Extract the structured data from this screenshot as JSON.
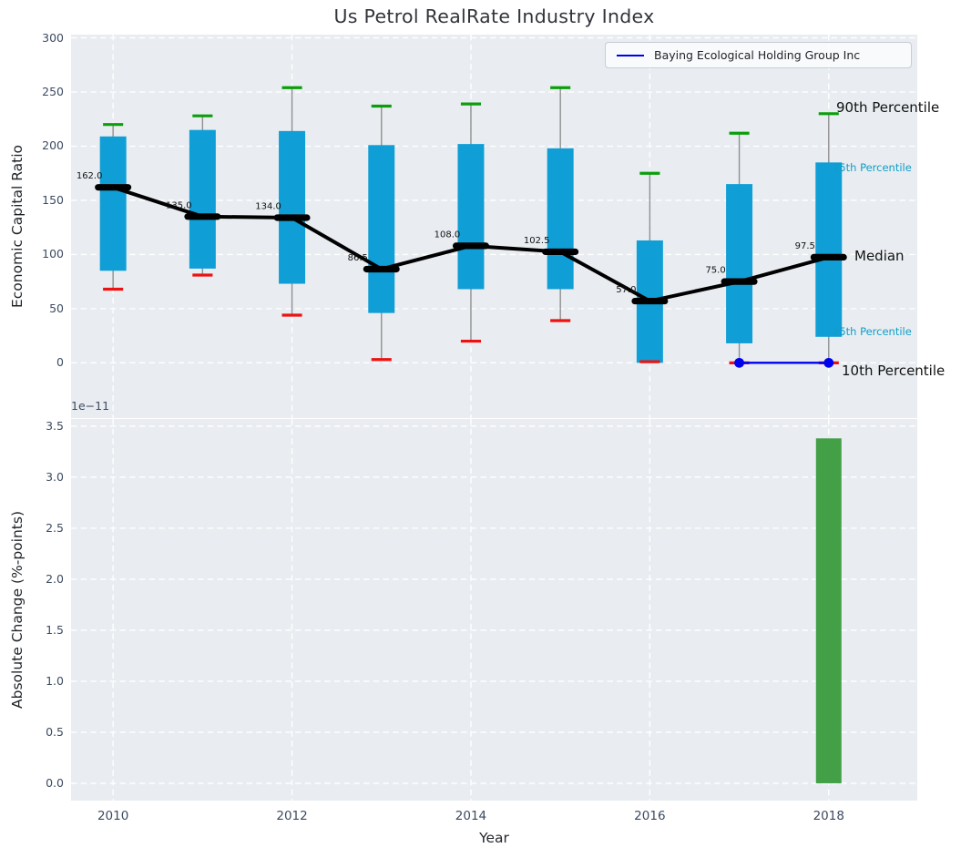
{
  "title": "Us Petrol RealRate Industry Index",
  "legend": {
    "label": "Baying Ecological Holding Group Inc"
  },
  "top_axis": {
    "ylabel": "Economic Capital Ratio",
    "ytick_labels": [
      "0",
      "50",
      "100",
      "150",
      "200",
      "250",
      "300"
    ]
  },
  "bottom_axis": {
    "ylabel": "Absolute Change (%-points)",
    "offset_text": "1e−11",
    "xlabel": "Year",
    "ytick_labels": [
      "0.0",
      "0.5",
      "1.0",
      "1.5",
      "2.0",
      "2.5",
      "3.0",
      "3.5"
    ],
    "xtick_labels": [
      "2010",
      "2012",
      "2014",
      "2016",
      "2018"
    ]
  },
  "annotations": [
    {
      "text": "90th Percentile",
      "color": "#111111",
      "size": 15,
      "anchor_value": 236,
      "dx": 0
    },
    {
      "text": "75th Percentile",
      "color": "#0f9dc8",
      "size": 11.5,
      "anchor_value": 180,
      "dx": -2
    },
    {
      "text": "Median",
      "color": "#111111",
      "size": 15,
      "anchor_value": 98.5,
      "dx": 10
    },
    {
      "text": "25th Percentile",
      "color": "#0f9dc8",
      "size": 11.5,
      "anchor_value": 29,
      "dx": -2
    },
    {
      "text": "10th Percentile",
      "color": "#111111",
      "size": 15,
      "anchor_value": -7.5,
      "dx": 3
    }
  ],
  "colors": {
    "box_fill": "#0f9ed5",
    "cap_high_green": "#0a9e0a",
    "cap_low_red": "#ee1111",
    "whisker_gray": "#8f8f8f",
    "median_black": "#000000",
    "company_blue": "#0000ee",
    "bar_green": "#43a047",
    "cyan_annotation": "#0f9dc8",
    "axes_background": "#e9edf1",
    "grid": "#ffffff"
  },
  "chart_data": [
    {
      "type": "boxplot-line",
      "title": "Us Petrol RealRate Industry Index",
      "ylabel": "Economic Capital Ratio",
      "ylim": [
        -51,
        303
      ],
      "yticks": [
        0,
        50,
        100,
        150,
        200,
        250,
        300
      ],
      "xlim": [
        2009.53,
        2018.99
      ],
      "xticks": [
        2010,
        2012,
        2014,
        2016,
        2018
      ],
      "grid": "white dashed, on",
      "legend_position": "upper right",
      "categories": [
        2010,
        2011,
        2012,
        2013,
        2014,
        2015,
        2016,
        2017,
        2018
      ],
      "series": [
        {
          "name": "90th Percentile",
          "role": "upper-cap",
          "values": [
            220,
            228,
            254,
            237,
            239,
            254,
            175,
            212,
            230
          ]
        },
        {
          "name": "75th Percentile",
          "role": "box-top",
          "values": [
            209,
            215,
            214,
            201,
            202,
            198,
            113,
            165,
            185
          ]
        },
        {
          "name": "Median",
          "role": "median",
          "values": [
            162,
            135,
            134,
            86.5,
            108,
            102.5,
            57,
            75,
            97.5
          ]
        },
        {
          "name": "25th Percentile",
          "role": "box-bottom",
          "values": [
            85,
            87,
            73,
            46,
            68,
            68,
            0,
            18,
            24
          ]
        },
        {
          "name": "10th Percentile",
          "role": "lower-cap",
          "values": [
            68,
            81,
            44,
            3,
            20,
            39,
            1,
            0,
            0
          ]
        }
      ],
      "median_labels": [
        "162.0",
        "135.0",
        "134.0",
        "86.5",
        "108.0",
        "102.5",
        "57.0",
        "75.0",
        "97.5"
      ],
      "company_line": {
        "name": "Baying Ecological Holding Group Inc",
        "x": [
          2017,
          2018
        ],
        "y": [
          0,
          0
        ]
      },
      "box_width_years": 0.295,
      "cap_width_years": 0.225
    },
    {
      "type": "bar",
      "ylabel": "Absolute Change (%-points)",
      "xlabel": "Year",
      "scale_factor": "1e-11",
      "ylim_1e11": [
        -0.17,
        3.57
      ],
      "yticks_1e11": [
        0.0,
        0.5,
        1.0,
        1.5,
        2.0,
        2.5,
        3.0,
        3.5
      ],
      "xlim": [
        2009.53,
        2018.99
      ],
      "xticks": [
        2010,
        2012,
        2014,
        2016,
        2018
      ],
      "categories": [
        2018
      ],
      "values_1e11": [
        3.38
      ],
      "bar_width_years": 0.285
    }
  ]
}
